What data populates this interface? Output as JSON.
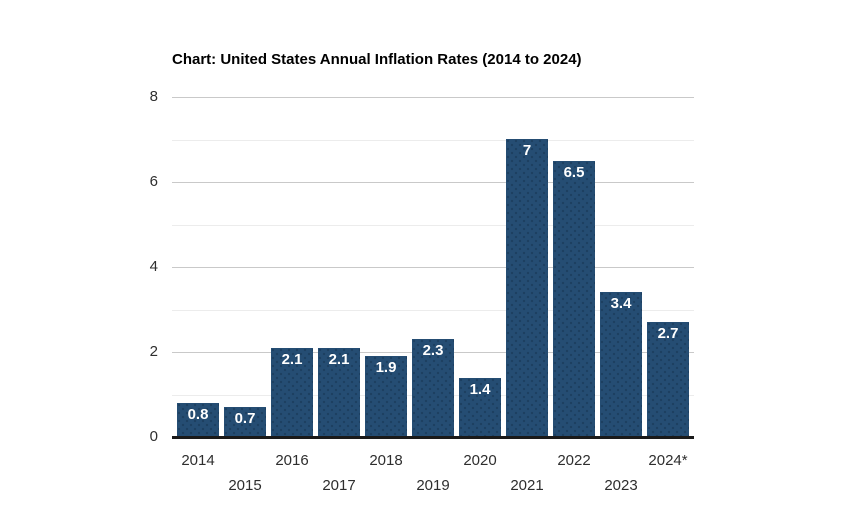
{
  "chart_data": {
    "type": "bar",
    "title": "Chart: United States Annual Inflation Rates (2014 to 2024)",
    "categories": [
      "2014",
      "2015",
      "2016",
      "2017",
      "2018",
      "2019",
      "2020",
      "2021",
      "2022",
      "2023",
      "2024*"
    ],
    "values": [
      0.8,
      0.7,
      2.1,
      2.1,
      1.9,
      2.3,
      1.4,
      7,
      6.5,
      3.4,
      2.7
    ],
    "value_labels": [
      "0.8",
      "0.7",
      "2.1",
      "2.1",
      "1.9",
      "2.3",
      "1.4",
      "7",
      "6.5",
      "3.4",
      "2.7"
    ],
    "xlabel": "",
    "ylabel": "",
    "ylim": [
      0,
      8
    ],
    "y_major_ticks": [
      0,
      2,
      4,
      6,
      8
    ],
    "y_minor_ticks": [
      1,
      3,
      5,
      7
    ],
    "grid": "horizontal-major-and-minor",
    "legend": "none",
    "x_tick_layout": "staggered-two-rows",
    "colors": {
      "bar_fill": "#254d73",
      "bar_dot_texture": "#1c3f5f",
      "bar_value_text": "#ffffff",
      "axis_baseline": "#1a1a1a",
      "major_gridline": "#c9c9c9",
      "minor_gridline": "#ececec",
      "tick_label": "#2e2e2e",
      "title_text": "#000000",
      "background": "#ffffff"
    }
  }
}
